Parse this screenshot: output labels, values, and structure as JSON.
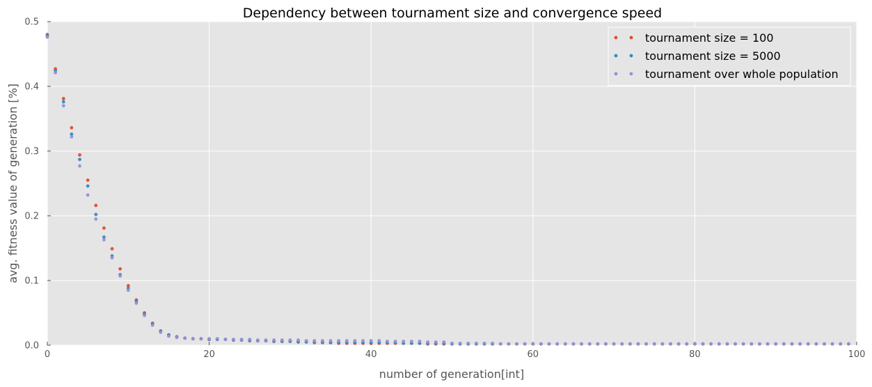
{
  "chart_data": {
    "type": "scatter",
    "title": "Dependency between tournament size and convergence speed",
    "xlabel": "number of generation[int]",
    "ylabel": "avg. fitness value of generation [%]",
    "xlim": [
      0,
      100
    ],
    "ylim": [
      0,
      0.5
    ],
    "xticks": [
      "0",
      "20",
      "40",
      "60",
      "80",
      "100"
    ],
    "yticks": [
      "0.0",
      "0.1",
      "0.2",
      "0.3",
      "0.4",
      "0.5"
    ],
    "grid": true,
    "legend_position": "top-right",
    "series": [
      {
        "name": "tournament size = 100",
        "color": "#E24A33",
        "x": [
          0,
          1,
          2,
          3,
          4,
          5,
          6,
          7,
          8,
          9,
          10,
          11,
          12,
          13,
          14,
          15,
          16,
          17,
          18,
          19,
          20,
          21,
          22,
          23,
          24,
          25,
          26,
          27,
          28,
          29,
          30,
          31,
          32,
          33,
          34,
          35,
          36,
          37,
          38,
          39,
          40,
          41,
          42,
          43,
          44,
          45,
          46,
          47,
          48,
          49,
          50,
          51,
          52,
          53,
          54,
          55,
          56,
          57,
          58,
          59,
          60,
          61,
          62,
          63,
          64,
          65,
          66,
          67,
          68,
          69,
          70,
          71,
          72,
          73,
          74,
          75,
          76,
          77,
          78,
          79,
          80,
          81,
          82,
          83,
          84,
          85,
          86,
          87,
          88,
          89,
          90,
          91,
          92,
          93,
          94,
          95,
          96,
          97,
          98,
          99
        ],
        "y": [
          0.48,
          0.427,
          0.381,
          0.336,
          0.294,
          0.255,
          0.216,
          0.181,
          0.149,
          0.118,
          0.092,
          0.07,
          0.05,
          0.034,
          0.022,
          0.016,
          0.013,
          0.011,
          0.01,
          0.01,
          0.009,
          0.009,
          0.009,
          0.008,
          0.008,
          0.007,
          0.007,
          0.007,
          0.006,
          0.006,
          0.006,
          0.005,
          0.005,
          0.004,
          0.004,
          0.004,
          0.003,
          0.003,
          0.003,
          0.003,
          0.003,
          0.003,
          0.003,
          0.003,
          0.003,
          0.003,
          0.003,
          0.002,
          0.002,
          0.002,
          0.002,
          0.002,
          0.002,
          0.002,
          0.002,
          0.002,
          0.002,
          0.002,
          0.002,
          0.002,
          0.002,
          0.002,
          0.002,
          0.002,
          0.002,
          0.002,
          0.002,
          0.002,
          0.002,
          0.002,
          0.002,
          0.002,
          0.002,
          0.002,
          0.002,
          0.002,
          0.002,
          0.002,
          0.002,
          0.002,
          0.002,
          0.002,
          0.002,
          0.002,
          0.002,
          0.002,
          0.002,
          0.002,
          0.002,
          0.002,
          0.002,
          0.002,
          0.002,
          0.002,
          0.002,
          0.002,
          0.002,
          0.002,
          0.002,
          0.002
        ]
      },
      {
        "name": "tournament size = 5000",
        "color": "#348ABD",
        "x": [
          0,
          1,
          2,
          3,
          4,
          5,
          6,
          7,
          8,
          9,
          10,
          11,
          12,
          13,
          14,
          15,
          16,
          17,
          18,
          19,
          20,
          21,
          22,
          23,
          24,
          25,
          26,
          27,
          28,
          29,
          30,
          31,
          32,
          33,
          34,
          35,
          36,
          37,
          38,
          39,
          40,
          41,
          42,
          43,
          44,
          45,
          46,
          47,
          48,
          49,
          50,
          51,
          52,
          53,
          54,
          55,
          56,
          57,
          58,
          59,
          60,
          61,
          62,
          63,
          64,
          65,
          66,
          67,
          68,
          69,
          70,
          71,
          72,
          73,
          74,
          75,
          76,
          77,
          78,
          79,
          80,
          81,
          82,
          83,
          84,
          85,
          86,
          87,
          88,
          89,
          90,
          91,
          92,
          93,
          94,
          95,
          96,
          97,
          98,
          99
        ],
        "y": [
          0.478,
          0.424,
          0.376,
          0.326,
          0.287,
          0.246,
          0.202,
          0.167,
          0.138,
          0.109,
          0.088,
          0.068,
          0.048,
          0.033,
          0.022,
          0.016,
          0.013,
          0.011,
          0.01,
          0.01,
          0.009,
          0.009,
          0.009,
          0.008,
          0.008,
          0.007,
          0.007,
          0.007,
          0.006,
          0.006,
          0.006,
          0.005,
          0.005,
          0.005,
          0.005,
          0.004,
          0.004,
          0.004,
          0.004,
          0.004,
          0.004,
          0.004,
          0.004,
          0.004,
          0.003,
          0.003,
          0.003,
          0.003,
          0.003,
          0.003,
          0.002,
          0.002,
          0.002,
          0.002,
          0.002,
          0.002,
          0.002,
          0.002,
          0.002,
          0.002,
          0.002,
          0.002,
          0.002,
          0.002,
          0.002,
          0.002,
          0.002,
          0.002,
          0.002,
          0.002,
          0.002,
          0.002,
          0.002,
          0.002,
          0.002,
          0.002,
          0.002,
          0.002,
          0.002,
          0.002,
          0.002,
          0.002,
          0.002,
          0.002,
          0.002,
          0.002,
          0.002,
          0.002,
          0.002,
          0.002,
          0.002,
          0.002,
          0.002,
          0.002,
          0.002,
          0.002,
          0.002,
          0.002,
          0.002,
          0.002
        ]
      },
      {
        "name": "tournament over whole population",
        "color": "#988ED5",
        "x": [
          0,
          1,
          2,
          3,
          4,
          5,
          6,
          7,
          8,
          9,
          10,
          11,
          12,
          13,
          14,
          15,
          16,
          17,
          18,
          19,
          20,
          21,
          22,
          23,
          24,
          25,
          26,
          27,
          28,
          29,
          30,
          31,
          32,
          33,
          34,
          35,
          36,
          37,
          38,
          39,
          40,
          41,
          42,
          43,
          44,
          45,
          46,
          47,
          48,
          49,
          50,
          51,
          52,
          53,
          54,
          55,
          56,
          57,
          58,
          59,
          60,
          61,
          62,
          63,
          64,
          65,
          66,
          67,
          68,
          69,
          70,
          71,
          72,
          73,
          74,
          75,
          76,
          77,
          78,
          79,
          80,
          81,
          82,
          83,
          84,
          85,
          86,
          87,
          88,
          89,
          90,
          91,
          92,
          93,
          94,
          95,
          96,
          97,
          98,
          99
        ],
        "y": [
          0.476,
          0.421,
          0.37,
          0.322,
          0.277,
          0.232,
          0.195,
          0.163,
          0.135,
          0.107,
          0.085,
          0.065,
          0.046,
          0.031,
          0.02,
          0.014,
          0.012,
          0.011,
          0.01,
          0.01,
          0.01,
          0.01,
          0.009,
          0.009,
          0.009,
          0.009,
          0.008,
          0.008,
          0.008,
          0.008,
          0.008,
          0.008,
          0.007,
          0.007,
          0.007,
          0.007,
          0.007,
          0.007,
          0.007,
          0.007,
          0.007,
          0.007,
          0.006,
          0.006,
          0.006,
          0.006,
          0.006,
          0.005,
          0.005,
          0.005,
          0.003,
          0.003,
          0.003,
          0.003,
          0.003,
          0.003,
          0.002,
          0.002,
          0.002,
          0.002,
          0.002,
          0.002,
          0.002,
          0.002,
          0.002,
          0.002,
          0.002,
          0.002,
          0.002,
          0.002,
          0.002,
          0.002,
          0.002,
          0.002,
          0.002,
          0.002,
          0.002,
          0.002,
          0.002,
          0.002,
          0.002,
          0.002,
          0.002,
          0.002,
          0.002,
          0.002,
          0.002,
          0.002,
          0.002,
          0.002,
          0.002,
          0.002,
          0.002,
          0.002,
          0.002,
          0.002,
          0.002,
          0.002,
          0.002,
          0.002
        ]
      }
    ]
  }
}
